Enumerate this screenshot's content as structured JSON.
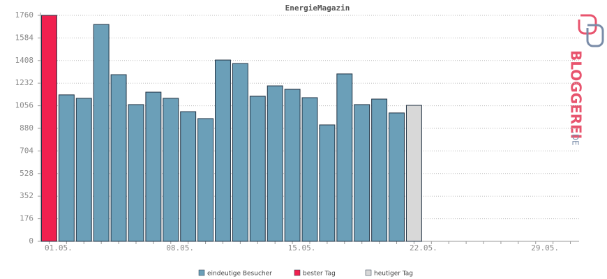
{
  "chart_data": {
    "type": "bar",
    "title": "EnergieMagazin",
    "categories": [
      "01.05.",
      null,
      null,
      null,
      null,
      null,
      null,
      "08.05.",
      null,
      null,
      null,
      null,
      null,
      null,
      "15.05.",
      null,
      null,
      null,
      null,
      null,
      null,
      "22.05.",
      null,
      null,
      null,
      null,
      null,
      null,
      "29.05.",
      null,
      null
    ],
    "series": [
      {
        "name": "eindeutige Besucher",
        "color": "#6b9fb8",
        "values": [
          null,
          1141,
          1114,
          1689,
          1298,
          1065,
          1162,
          1114,
          1010,
          956,
          1412,
          1385,
          1130,
          1211,
          1184,
          1119,
          907,
          1304,
          1065,
          1108,
          1000,
          null,
          null,
          null,
          null,
          null,
          null,
          null,
          null,
          null,
          null
        ]
      },
      {
        "name": "bester Tag",
        "color": "#f0204f",
        "values": [
          1760,
          null,
          null,
          null,
          null,
          null,
          null,
          null,
          null,
          null,
          null,
          null,
          null,
          null,
          null,
          null,
          null,
          null,
          null,
          null,
          null,
          null,
          null,
          null,
          null,
          null,
          null,
          null,
          null,
          null,
          null
        ]
      },
      {
        "name": "heutiger Tag",
        "color": "#d8d8d8",
        "values": [
          null,
          null,
          null,
          null,
          null,
          null,
          null,
          null,
          null,
          null,
          null,
          null,
          null,
          null,
          null,
          null,
          null,
          null,
          null,
          null,
          null,
          1059,
          null,
          null,
          null,
          null,
          null,
          null,
          null,
          null,
          null
        ]
      }
    ],
    "ylim": [
      0,
      1760
    ],
    "yticks": [
      0,
      176,
      352,
      528,
      704,
      880,
      1056,
      1232,
      1408,
      1584,
      1760
    ],
    "grid": true,
    "logo": {
      "name": "BLOGGEREI",
      "tld": ".DE"
    }
  }
}
